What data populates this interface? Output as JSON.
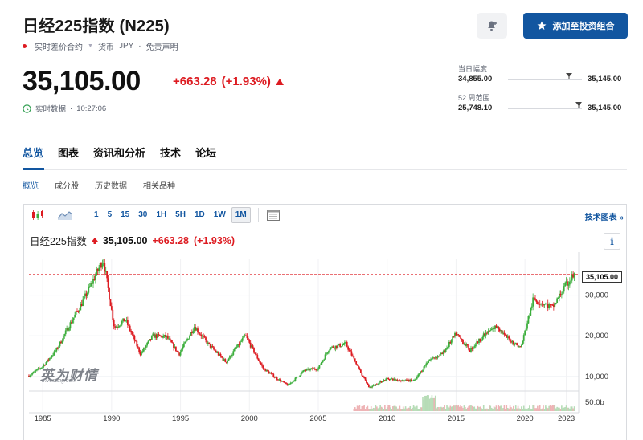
{
  "header": {
    "title": "日经225指数 (N225)",
    "meta_live": "实时差价合约",
    "meta_currency_label": "货币",
    "meta_currency": "JPY",
    "meta_disclaimer": "免责声明",
    "add_button_label": "添加至投资组合",
    "bell_icon": "add-alert-icon"
  },
  "quote": {
    "price": "35,105.00",
    "change": "+663.28",
    "change_pct": "(+1.93%)",
    "realtime_label": "实时数据",
    "time": "10:27:06",
    "up_color": "#dd1b21"
  },
  "ranges": {
    "day_label": "当日幅度",
    "day_low": "34,855.00",
    "day_high": "35,145.00",
    "day_position": 0.86,
    "week52_label": "52 周范围",
    "week52_low": "25,748.10",
    "week52_high": "35,145.00",
    "week52_position": 0.99
  },
  "tabs": [
    "总览",
    "图表",
    "资讯和分析",
    "技术",
    "论坛"
  ],
  "subtabs": [
    "概览",
    "成分股",
    "历史数据",
    "相关品种"
  ],
  "toolbar": {
    "intervals": [
      "1",
      "5",
      "15",
      "30",
      "1H",
      "5H",
      "1D",
      "1W",
      "1M"
    ],
    "selected": "1M",
    "tech_chart_label": "技术图表 »"
  },
  "chart_legend": {
    "name": "日经225指数",
    "value": "35,105.00",
    "change": "+663.28",
    "change_pct": "(+1.93%)",
    "info": "i"
  },
  "watermark": {
    "text": "英为财情",
    "sub": "Investing.com"
  },
  "chart_data": {
    "type": "candlestick",
    "x_ticks": [
      "1985",
      "1990",
      "1995",
      "2000",
      "2005",
      "2010",
      "2015",
      "2020",
      "2023"
    ],
    "y_ticks": [
      "10,000",
      "20,000",
      "30,000"
    ],
    "volume_tick": "50.0b",
    "last_price_label": "35,105.00",
    "ylim": [
      7000,
      39000
    ],
    "up_color": "#3cae3c",
    "down_color": "#dd1b21",
    "grid": true,
    "series_close": [
      [
        1984.5,
        10200
      ],
      [
        1985.5,
        12500
      ],
      [
        1986.5,
        16500
      ],
      [
        1987.5,
        23000
      ],
      [
        1988.5,
        29000
      ],
      [
        1989.9,
        38900
      ],
      [
        1990.7,
        22000
      ],
      [
        1991.5,
        24000
      ],
      [
        1992.6,
        15500
      ],
      [
        1993.5,
        20000
      ],
      [
        1994.5,
        19700
      ],
      [
        1995.4,
        15500
      ],
      [
        1996.5,
        22300
      ],
      [
        1997.5,
        18000
      ],
      [
        1998.8,
        13500
      ],
      [
        2000.2,
        20000
      ],
      [
        2001.5,
        12000
      ],
      [
        2002.5,
        9500
      ],
      [
        2003.3,
        7800
      ],
      [
        2004.5,
        11500
      ],
      [
        2005.5,
        12000
      ],
      [
        2006.3,
        17000
      ],
      [
        2007.5,
        18000
      ],
      [
        2008.5,
        11500
      ],
      [
        2009.2,
        7200
      ],
      [
        2010.5,
        9500
      ],
      [
        2011.5,
        9000
      ],
      [
        2012.5,
        9000
      ],
      [
        2013.5,
        14000
      ],
      [
        2014.5,
        15500
      ],
      [
        2015.5,
        20500
      ],
      [
        2016.5,
        16500
      ],
      [
        2017.5,
        20000
      ],
      [
        2018.5,
        22500
      ],
      [
        2019.0,
        20000
      ],
      [
        2020.2,
        17000
      ],
      [
        2021.1,
        29000
      ],
      [
        2022.5,
        27000
      ],
      [
        2023.5,
        32500
      ],
      [
        2024.1,
        35105
      ]
    ]
  }
}
